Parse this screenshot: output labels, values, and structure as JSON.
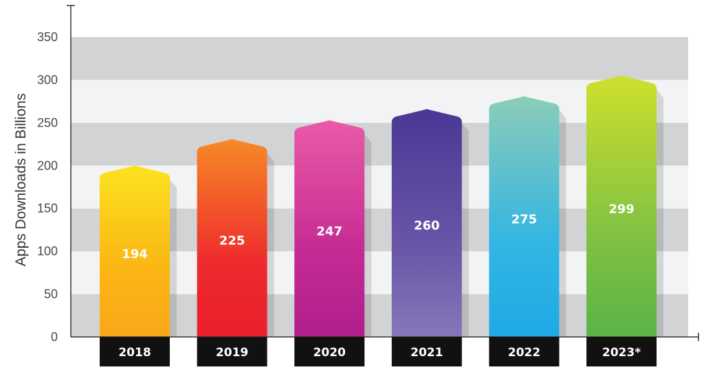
{
  "chart_data": {
    "type": "bar",
    "categories": [
      "2018",
      "2019",
      "2020",
      "2021",
      "2022",
      "2023*"
    ],
    "values": [
      194,
      225,
      247,
      260,
      275,
      299
    ],
    "title": "",
    "xlabel": "",
    "ylabel": "Apps Downloads in Billions",
    "ylim": [
      0,
      350
    ],
    "yticks": [
      0,
      50,
      100,
      150,
      200,
      250,
      300,
      350
    ],
    "grid": "alternating horizontal bands",
    "legend": "none"
  },
  "colors": {
    "band_dark": "#d2d3d5",
    "band_light": "#f2f3f4",
    "axis": "#333333",
    "label_box": "#111111",
    "bar_gradients": [
      [
        "#fbe21f",
        "#fbb514",
        "#f9a81a"
      ],
      [
        "#f68a26",
        "#ee2b2d",
        "#e91f2c"
      ],
      [
        "#e95aa7",
        "#c42a93",
        "#b01f8c"
      ],
      [
        "#4a3795",
        "#6a57a8",
        "#8677b9"
      ],
      [
        "#8ccdb9",
        "#31b5e3",
        "#1fa9e6"
      ],
      [
        "#cfe02e",
        "#7fc143",
        "#5bb445"
      ]
    ]
  }
}
